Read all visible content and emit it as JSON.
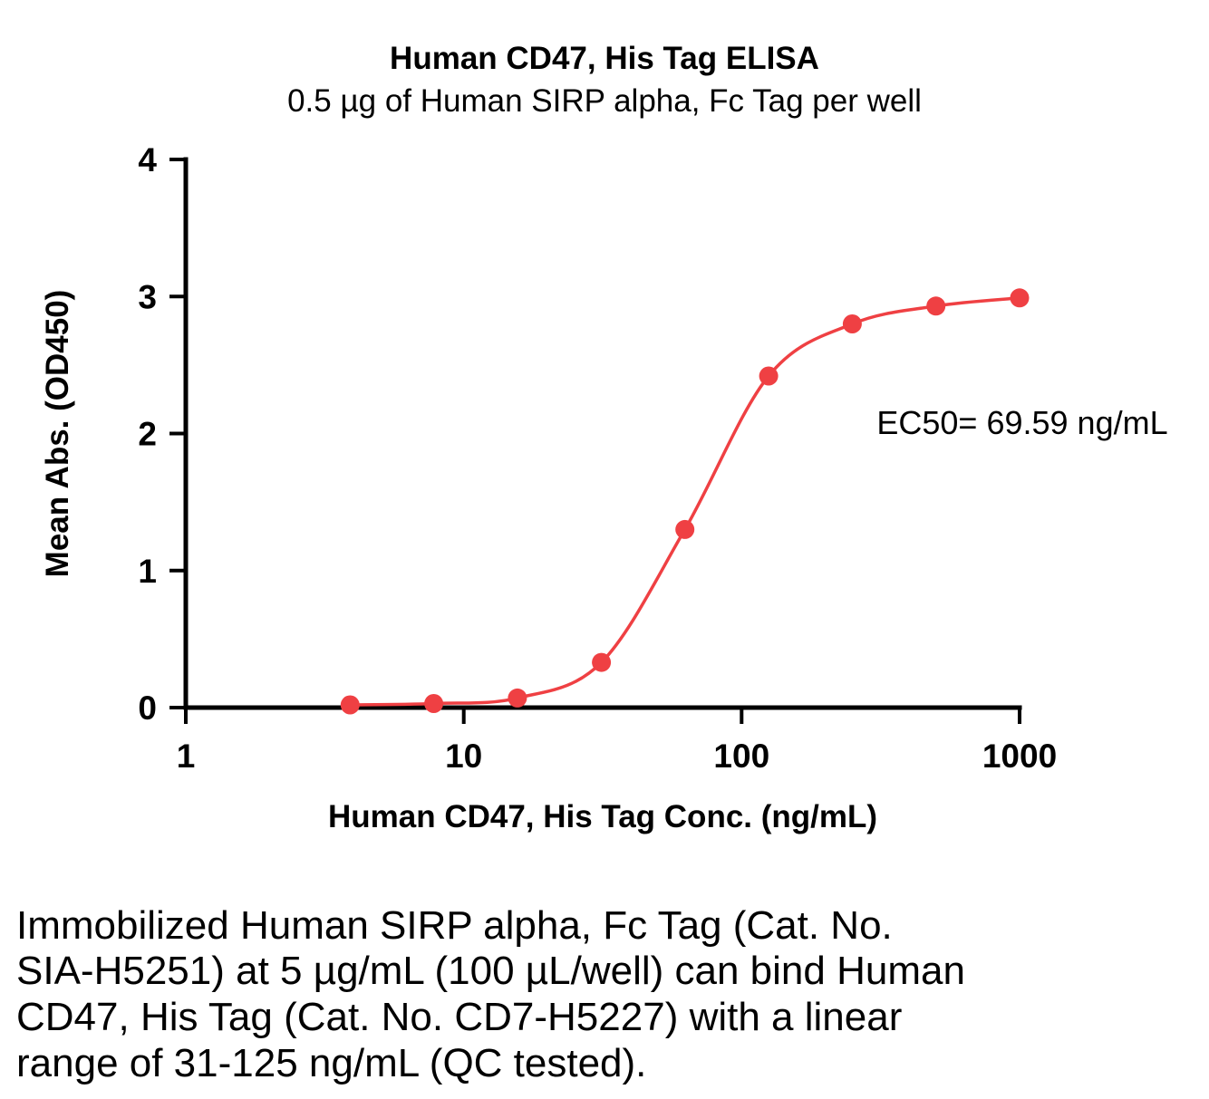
{
  "chart_data": {
    "type": "scatter",
    "title": "Human CD47, His Tag ELISA",
    "subtitle": "0.5 µg of Human SIRP alpha, Fc Tag per well",
    "xlabel": "Human CD47, His Tag Conc. (ng/mL)",
    "ylabel": "Mean Abs. (OD450)",
    "x_scale": "log10",
    "xlim": [
      1,
      1000
    ],
    "ylim": [
      0,
      4
    ],
    "x_ticks": [
      1,
      10,
      100,
      1000
    ],
    "y_ticks": [
      0,
      1,
      2,
      3,
      4
    ],
    "grid": false,
    "legend": "none",
    "annotation": "EC50= 69.59 ng/mL",
    "series": [
      {
        "name": "Human CD47, His Tag",
        "color": "#ef4043",
        "marker": "circle",
        "line": "sigmoid-fit",
        "x": [
          3.9,
          7.8,
          15.6,
          31.3,
          62.5,
          125,
          250,
          500,
          1000
        ],
        "y": [
          0.02,
          0.03,
          0.07,
          0.33,
          1.3,
          2.42,
          2.8,
          2.93,
          2.99
        ]
      }
    ]
  },
  "colors": {
    "accent": "#ef4043",
    "axis": "#000000",
    "background": "#ffffff"
  },
  "caption": {
    "lines": [
      "Immobilized Human SIRP alpha, Fc Tag (Cat. No.",
      "SIA-H5251) at 5 µg/mL (100 µL/well) can bind Human",
      "CD47, His Tag (Cat. No. CD7-H5227) with a linear",
      "range of 31-125 ng/mL (QC tested)."
    ]
  }
}
